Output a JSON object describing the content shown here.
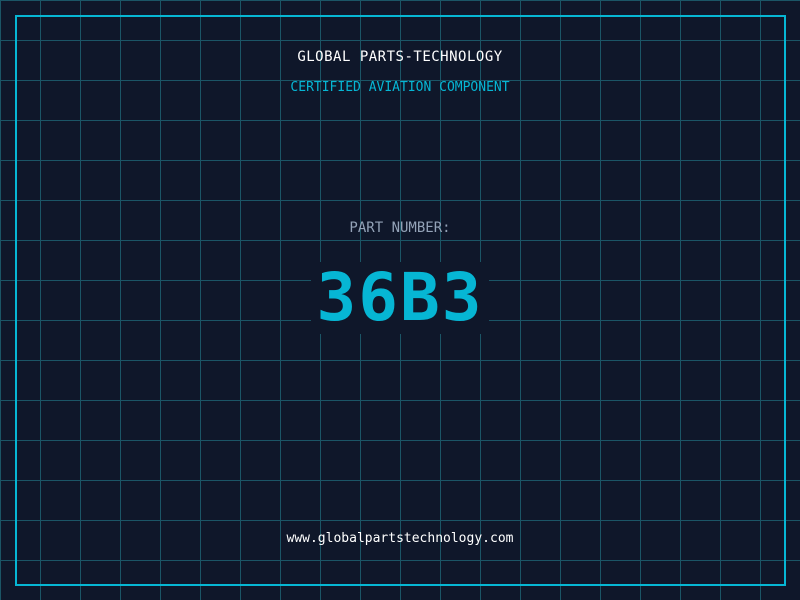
{
  "header": {
    "company": "GLOBAL PARTS-TECHNOLOGY",
    "subtitle": "CERTIFIED AVIATION COMPONENT"
  },
  "part": {
    "label": "PART NUMBER:",
    "number": "36B3"
  },
  "footer": {
    "url": "www.globalpartstechnology.com"
  },
  "colors": {
    "background": "#0f172a",
    "accent": "#06b6d4",
    "grid": "#1b5566",
    "label": "#94a3b8"
  }
}
